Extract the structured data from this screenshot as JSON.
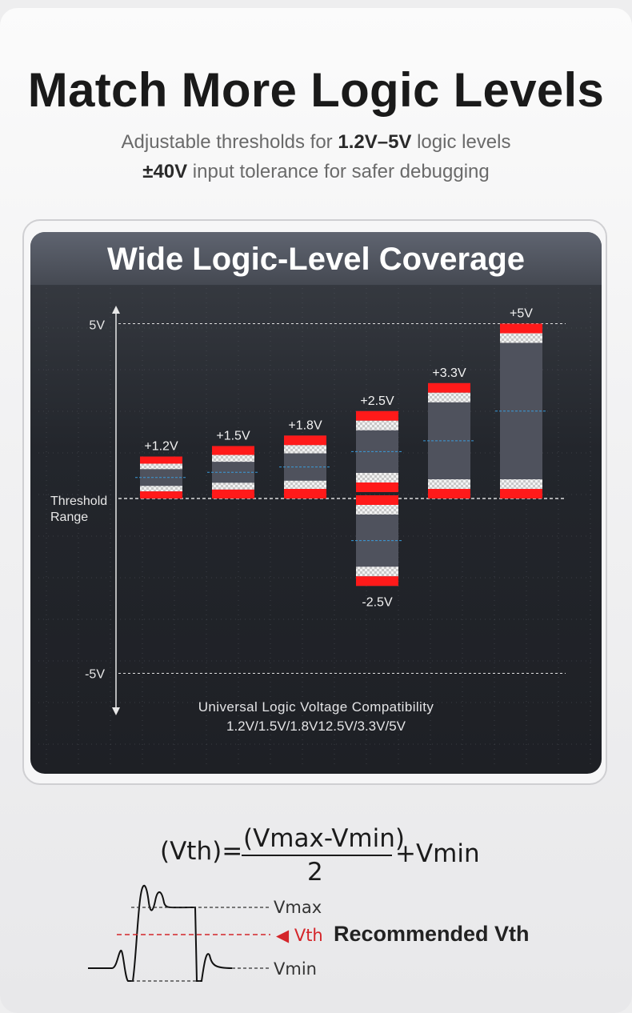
{
  "header": {
    "title": "Match More Logic Levels",
    "line1_pre": "Adjustable thresholds for ",
    "line1_bold": "1.2V–5V",
    "line1_post": " logic levels",
    "line2_bold": "±40V",
    "line2_post": " input tolerance for safer debugging"
  },
  "panel": {
    "title": "Wide Logic-Level Coverage",
    "caption_line1": "Universal Logic Voltage Compatibility",
    "caption_line2": "1.2V/1.5V/1.8V12.5V/3.3V/5V"
  },
  "chart_data": {
    "type": "bar",
    "title": "Wide Logic-Level Coverage",
    "ylabel": "Threshold Range",
    "ylim": [
      -5,
      5
    ],
    "y_tick_labels": [
      "5V",
      "-5V"
    ],
    "colors": {
      "edge": "#ff1a1a",
      "band": "#dcdcdc",
      "body": "#4f525d",
      "axis": "#e8e8e8",
      "midline": "#3a9ad9"
    },
    "series": [
      {
        "label_top": "+1.2V",
        "label_bottom": "",
        "max": 1.2,
        "min": 0
      },
      {
        "label_top": "+1.5V",
        "label_bottom": "",
        "max": 1.5,
        "min": 0
      },
      {
        "label_top": "+1.8V",
        "label_bottom": "",
        "max": 1.8,
        "min": 0
      },
      {
        "label_top": "+2.5V",
        "label_bottom": "-2.5V",
        "max": 2.5,
        "min": -2.5
      },
      {
        "label_top": "+3.3V",
        "label_bottom": "",
        "max": 3.3,
        "min": 0
      },
      {
        "label_top": "+5V",
        "label_bottom": "",
        "max": 5,
        "min": 0
      }
    ]
  },
  "formula": {
    "lhs": "(Vth)=",
    "numerator": "(Vmax-Vmin)",
    "denominator": "2",
    "rhs": "+Vmin"
  },
  "waveform": {
    "vmax": "Vmax",
    "vmin": "Vmin",
    "vth_marker": "◀ Vth",
    "recommended": "Recommended Vth",
    "vth_color": "#d4252a"
  }
}
